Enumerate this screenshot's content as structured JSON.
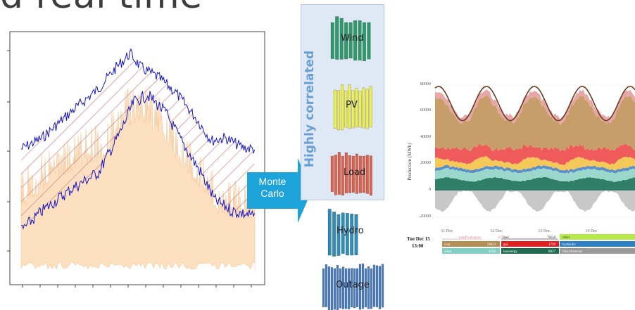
{
  "header": {
    "title_fragment": "d real time"
  },
  "left_plot": {
    "line_color": "#1515c8",
    "band_color": "#fde0c0",
    "hatch_color": "#d07a7a"
  },
  "process": {
    "arrow_label_line1": "Monte",
    "arrow_label_line2": "Carlo",
    "arrow_color": "#1ca3d9"
  },
  "correlated_panel": {
    "title": "Highly correlated",
    "items": [
      "Wind",
      "PV",
      "Load"
    ]
  },
  "independent_items": [
    "Hydro",
    "Outage"
  ],
  "colors": {
    "wind": "#2e9a6c",
    "pv": "#efef4e",
    "load": "#e0604c",
    "hydro": "#2f8db8",
    "outage": "#4a7fc4"
  },
  "right_chart": {
    "y_axis_label": "Production (MWh)",
    "y_ticks": [
      "80000",
      "60000",
      "40000",
      "20000",
      "0",
      "-20000"
    ],
    "x_ticks": [
      "11 Dec",
      "12 Dec",
      "13 Dec",
      "14 Dec"
    ],
    "tooltip": {
      "date": "Tue Dec 15",
      "time": "13:00",
      "rows": [
        [
          "totalProduction",
          "8776",
          "load",
          "76650",
          "other",
          ""
        ],
        [
          "coal",
          "28433",
          "gas",
          "1730",
          "hydraulic",
          ""
        ],
        [
          "wind",
          "4568",
          "bioenergy",
          "8837",
          "miscellaneous",
          ""
        ]
      ]
    }
  }
}
